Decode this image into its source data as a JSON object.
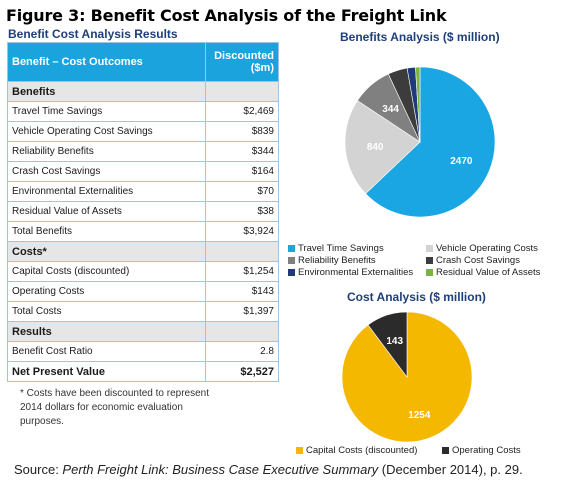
{
  "figure_title": "Figure 3: Benefit Cost Analysis of the Freight Link",
  "table": {
    "title": "Benefit Cost Analysis Results",
    "header": {
      "col1": "Benefit – Cost Outcomes",
      "col2": "Discounted ($m)"
    },
    "sections": [
      {
        "heading": "Benefits",
        "rows": [
          {
            "label": "Travel Time Savings",
            "value": "$2,469"
          },
          {
            "label": "Vehicle Operating Cost Savings",
            "value": "$839"
          },
          {
            "label": "Reliability Benefits",
            "value": "$344"
          },
          {
            "label": "Crash Cost Savings",
            "value": "$164"
          },
          {
            "label": "Environmental Externalities",
            "value": "$70"
          },
          {
            "label": "Residual Value of Assets",
            "value": "$38"
          },
          {
            "label": "Total Benefits",
            "value": "$3,924"
          }
        ]
      },
      {
        "heading": "Costs*",
        "rows": [
          {
            "label": "Capital Costs (discounted)",
            "value": "$1,254"
          },
          {
            "label": "Operating Costs",
            "value": "$143"
          },
          {
            "label": "Total Costs",
            "value": "$1,397"
          }
        ]
      },
      {
        "heading": "Results",
        "rows": [
          {
            "label": "Benefit Cost Ratio",
            "value": "2.8"
          }
        ]
      }
    ],
    "npv": {
      "label": "Net Present Value",
      "value": "$2,527"
    }
  },
  "footnote": "* Costs have been discounted to represent 2014 dollars for economic evaluation purposes.",
  "source": {
    "prefix": "Source: ",
    "title": "Perth Freight Link: Business Case Executive Summary",
    "suffix": " (December 2014), p. 29."
  },
  "chart_data": [
    {
      "type": "pie",
      "title": "Benefits Analysis ($ million)",
      "categories": [
        "Travel Time Savings",
        "Vehicle Operating Costs",
        "Reliability Benefits",
        "Crash Cost Savings",
        "Environmental Externalities",
        "Residual Value of Assets"
      ],
      "values": [
        2470,
        840,
        344,
        164,
        70,
        38
      ],
      "data_labels": [
        "2470",
        "840",
        "344",
        "",
        "",
        ""
      ],
      "colors": [
        "#19a6e3",
        "#d3d3d3",
        "#808080",
        "#3c3c3c",
        "#1f3a7a",
        "#7ab63c"
      ],
      "legend_position": "bottom"
    },
    {
      "type": "pie",
      "title": "Cost Analysis ($ million)",
      "categories": [
        "Capital Costs (discounted)",
        "Operating Costs"
      ],
      "values": [
        1254,
        143
      ],
      "data_labels": [
        "1254",
        "143"
      ],
      "colors": [
        "#f5b800",
        "#2b2b2b"
      ],
      "legend_position": "bottom"
    }
  ]
}
